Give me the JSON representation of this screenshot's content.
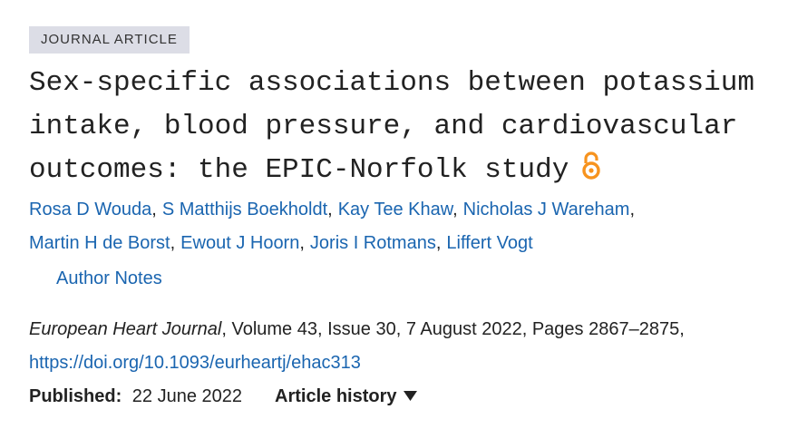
{
  "tag": "JOURNAL ARTICLE",
  "title": "Sex-specific associations between potassium intake, blood pressure, and cardiovascular outcomes: the EPIC-Norfolk study",
  "authors": [
    [
      "Rosa D Wouda",
      "S Matthijs Boekholdt",
      "Kay Tee Khaw",
      "Nicholas J Wareham"
    ],
    [
      "Martin H de Borst",
      "Ewout J Hoorn",
      "Joris I Rotmans",
      "Liffert Vogt"
    ]
  ],
  "author_separator": ",",
  "author_notes": "Author Notes",
  "citation": {
    "journal": "European Heart Journal",
    "details": ", Volume 43, Issue 30, 7 August 2022, Pages 2867–2875,"
  },
  "doi": "https://doi.org/10.1093/eurheartj/ehac313",
  "published_label": "Published:",
  "published_date": "22 June 2022",
  "article_history": "Article history"
}
